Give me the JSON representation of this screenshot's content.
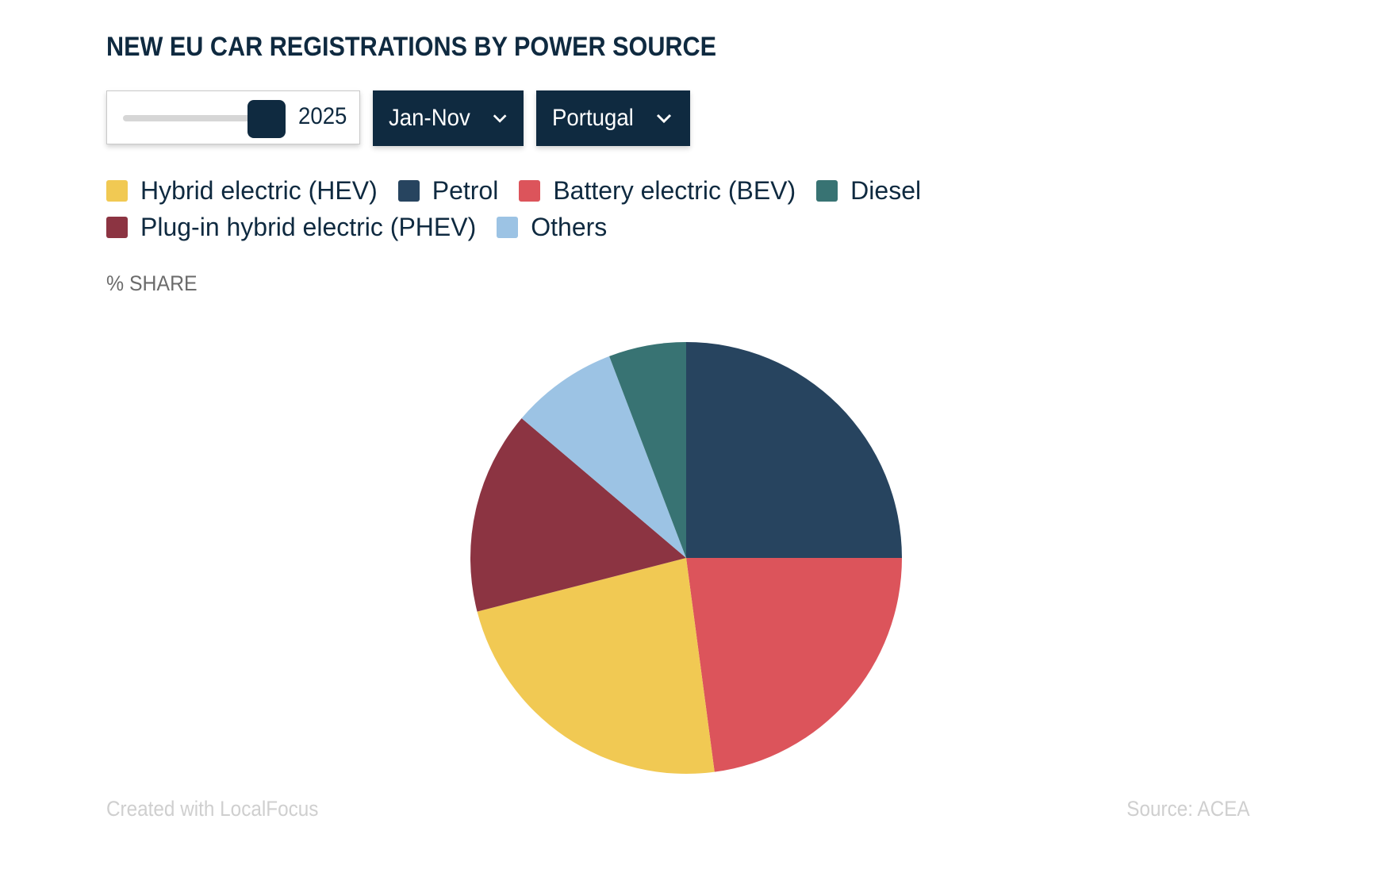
{
  "title": "NEW EU CAR REGISTRATIONS BY POWER SOURCE",
  "controls": {
    "year_slider_value": "2025",
    "period_label": "Jan-Nov",
    "country_label": "Portugal"
  },
  "unit_label": "% SHARE",
  "footer": {
    "credit": "Created with LocalFocus",
    "source": "Source:  ACEA"
  },
  "colors": {
    "title": "#0f2a40",
    "control_bg": "#0f2a40"
  },
  "chart_data": {
    "type": "pie",
    "categories": [
      "Petrol",
      "Battery electric (BEV)",
      "Hybrid electric (HEV)",
      "Plug-in hybrid electric (PHEV)",
      "Others",
      "Diesel"
    ],
    "values": [
      25.0,
      22.9,
      23.1,
      15.2,
      8.0,
      5.8
    ],
    "colors": [
      "#27445f",
      "#dc545b",
      "#f1c953",
      "#8c3442",
      "#9cc3e4",
      "#387373"
    ],
    "legend": [
      {
        "label": "Hybrid electric (HEV)",
        "color": "#f1c953"
      },
      {
        "label": "Petrol",
        "color": "#27445f"
      },
      {
        "label": "Battery electric (BEV)",
        "color": "#dc545b"
      },
      {
        "label": "Diesel",
        "color": "#387373"
      },
      {
        "label": "Plug-in hybrid electric (PHEV)",
        "color": "#8c3442"
      },
      {
        "label": "Others",
        "color": "#9cc3e4"
      }
    ],
    "title": "NEW EU CAR REGISTRATIONS BY POWER SOURCE",
    "legend_placement": "top",
    "start_angle": "12 o'clock, clockwise"
  }
}
